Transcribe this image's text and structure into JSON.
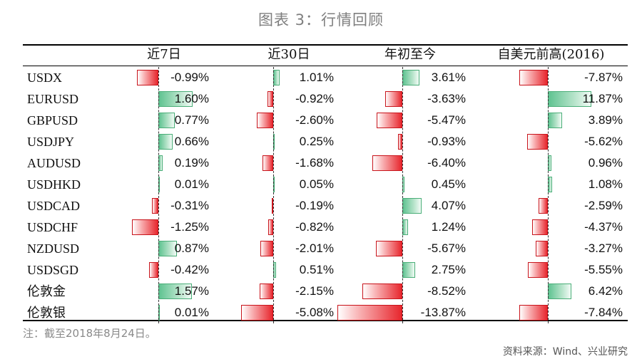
{
  "title": "图表 3：行情回顾",
  "footnote": "注：截至2018年8月24日。",
  "source": "资料来源：Wind、兴业研究",
  "chart_data": {
    "type": "bar",
    "orientation": "horizontal",
    "title": "图表 3：行情回顾",
    "unit": "%",
    "categories": [
      "USDX",
      "EURUSD",
      "GBPUSD",
      "USDJPY",
      "AUDUSD",
      "USDHKD",
      "USDCAD",
      "USDCHF",
      "NZDUSD",
      "USDSGD",
      "伦敦金",
      "伦敦银"
    ],
    "series": [
      {
        "name": "近7日",
        "values": [
          -0.99,
          1.6,
          0.77,
          0.66,
          0.19,
          0.01,
          -0.31,
          -1.25,
          0.87,
          -0.42,
          1.57,
          0.01
        ],
        "labels": [
          "-0.99%",
          "1.60%",
          "0.77%",
          "0.66%",
          "0.19%",
          "0.01%",
          "-0.31%",
          "-1.25%",
          "0.87%",
          "-0.42%",
          "1.57%",
          "0.01%"
        ]
      },
      {
        "name": "近30日",
        "values": [
          1.01,
          -0.92,
          -2.6,
          0.25,
          -1.68,
          0.05,
          -0.19,
          -0.82,
          -2.01,
          0.51,
          -2.15,
          -5.08
        ],
        "labels": [
          "1.01%",
          "-0.92%",
          "-2.60%",
          "0.25%",
          "-1.68%",
          "0.05%",
          "-0.19%",
          "-0.82%",
          "-2.01%",
          "0.51%",
          "-2.15%",
          "-5.08%"
        ]
      },
      {
        "name": "年初至今",
        "values": [
          3.61,
          -3.63,
          -5.47,
          -0.93,
          -6.4,
          0.45,
          4.07,
          1.24,
          -5.67,
          2.75,
          -8.52,
          -13.87
        ],
        "labels": [
          "3.61%",
          "-3.63%",
          "-5.47%",
          "-0.93%",
          "-6.40%",
          "0.45%",
          "4.07%",
          "1.24%",
          "-5.67%",
          "2.75%",
          "-8.52%",
          "-13.87%"
        ]
      },
      {
        "name": "自美元前高(2016)",
        "values": [
          -7.87,
          11.87,
          3.89,
          -5.62,
          0.96,
          1.08,
          -2.59,
          -4.37,
          -3.27,
          -5.55,
          6.42,
          -7.84
        ],
        "labels": [
          "-7.87%",
          "11.87%",
          "3.89%",
          "-5.62%",
          "0.96%",
          "1.08%",
          "-2.59%",
          "-4.37%",
          "-3.27%",
          "-5.55%",
          "6.42%",
          "-7.84%"
        ]
      }
    ],
    "colors": {
      "positive": "#5fc391",
      "negative": "#e7262d"
    }
  }
}
